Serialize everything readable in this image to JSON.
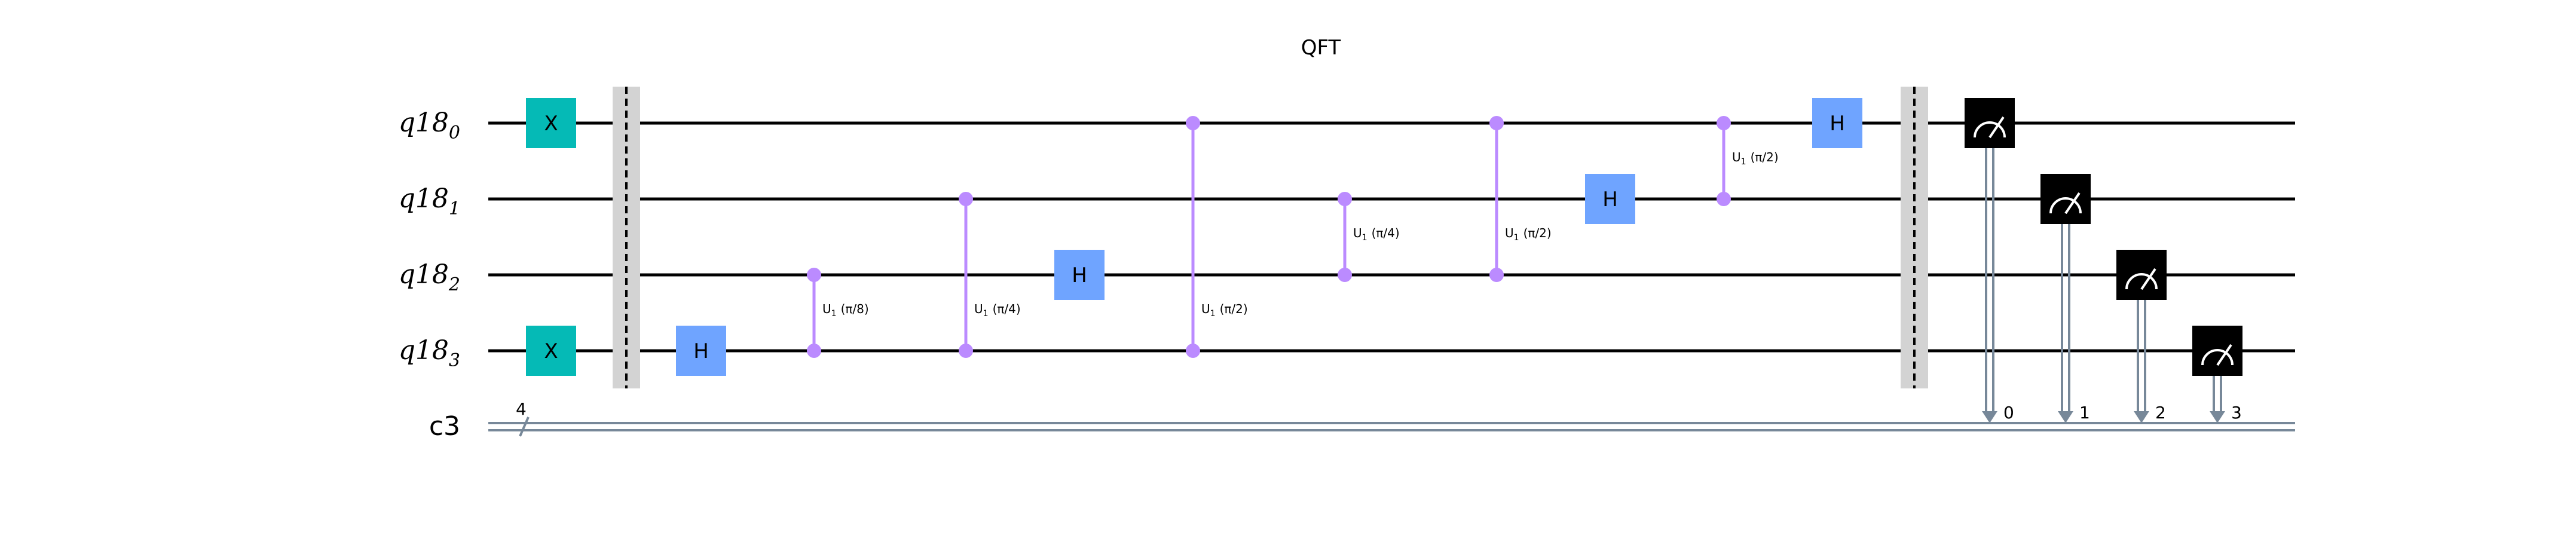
{
  "title": "QFT",
  "qubits": [
    {
      "base": "q18",
      "index": "0"
    },
    {
      "base": "q18",
      "index": "1"
    },
    {
      "base": "q18",
      "index": "2"
    },
    {
      "base": "q18",
      "index": "3"
    }
  ],
  "creg": {
    "name": "c3",
    "width": "4"
  },
  "gate_labels": {
    "x": "X",
    "h": "H"
  },
  "phase_labels": [
    {
      "gate": "U",
      "sub": "1",
      "arg": "(π/8)"
    },
    {
      "gate": "U",
      "sub": "1",
      "arg": "(π/4)"
    },
    {
      "gate": "U",
      "sub": "1",
      "arg": "(π/2)"
    },
    {
      "gate": "U",
      "sub": "1",
      "arg": "(π/4)"
    },
    {
      "gate": "U",
      "sub": "1",
      "arg": "(π/2)"
    },
    {
      "gate": "U",
      "sub": "1",
      "arg": "(π/2)"
    }
  ],
  "measure_bits": [
    "0",
    "1",
    "2",
    "3"
  ],
  "colors": {
    "x_gate": "#05bab6",
    "h_gate": "#6fa4ff",
    "control": "#bb8bff",
    "measure": "#000000",
    "barrier": "#d3d3d3",
    "classical": "#778899"
  }
}
